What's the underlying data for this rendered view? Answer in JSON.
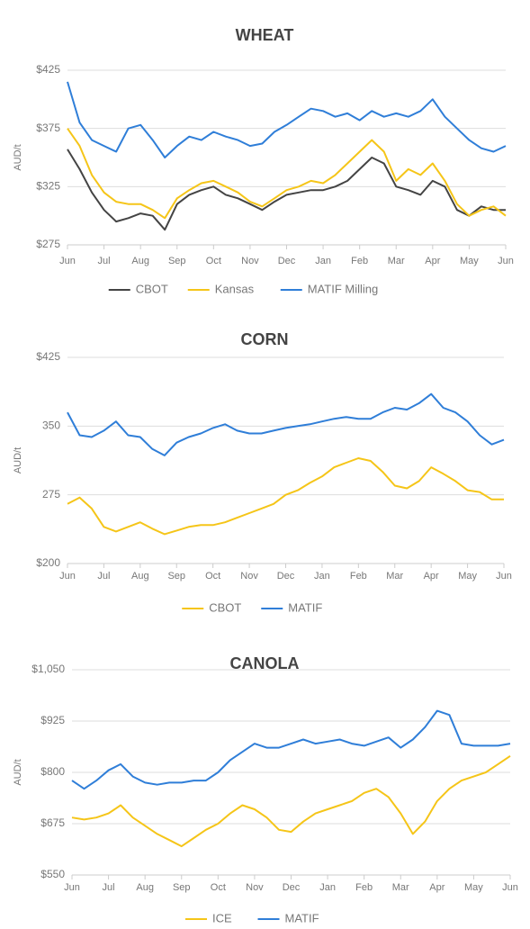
{
  "chart_data": [
    {
      "type": "line",
      "title": "WHEAT",
      "y_label": "AUD/t",
      "grid": true,
      "legend": "bottom",
      "categories": [
        "Jun",
        null,
        null,
        "Jul",
        null,
        null,
        "Aug",
        null,
        null,
        "Sep",
        null,
        null,
        "Oct",
        null,
        null,
        "Nov",
        null,
        null,
        "Dec",
        null,
        null,
        "Jan",
        null,
        null,
        "Feb",
        null,
        null,
        "Mar",
        null,
        null,
        "Apr",
        null,
        null,
        "May",
        null,
        null,
        "Jun"
      ],
      "ylim": [
        275,
        425
      ],
      "yticks": [
        {
          "value": 275,
          "label": "$275"
        },
        {
          "value": 325,
          "label": "$325"
        },
        {
          "value": 375,
          "label": "$375"
        },
        {
          "value": 425,
          "label": "$425"
        }
      ],
      "series": [
        {
          "name": "CBOT",
          "color": "#444444",
          "values": [
            357,
            340,
            320,
            305,
            295,
            298,
            302,
            300,
            288,
            310,
            318,
            322,
            325,
            318,
            315,
            310,
            305,
            312,
            318,
            320,
            322,
            322,
            325,
            330,
            340,
            350,
            345,
            325,
            322,
            318,
            330,
            325,
            305,
            300,
            308,
            305,
            305
          ]
        },
        {
          "name": "Kansas",
          "color": "#f5c518",
          "values": [
            375,
            360,
            335,
            320,
            312,
            310,
            310,
            305,
            298,
            315,
            322,
            328,
            330,
            325,
            320,
            312,
            308,
            315,
            322,
            325,
            330,
            328,
            335,
            345,
            355,
            365,
            355,
            330,
            340,
            335,
            345,
            330,
            310,
            300,
            305,
            308,
            300
          ]
        },
        {
          "name": "MATIF Milling",
          "color": "#2f7ed8",
          "values": [
            415,
            380,
            365,
            360,
            355,
            375,
            378,
            365,
            350,
            360,
            368,
            365,
            372,
            368,
            365,
            360,
            362,
            372,
            378,
            385,
            392,
            390,
            385,
            388,
            382,
            390,
            385,
            388,
            385,
            390,
            400,
            385,
            375,
            365,
            358,
            355,
            360
          ]
        }
      ]
    },
    {
      "type": "line",
      "title": "CORN",
      "y_label": "AUD/t",
      "grid": true,
      "legend": "bottom",
      "categories": [
        "Jun",
        null,
        null,
        "Jul",
        null,
        null,
        "Aug",
        null,
        null,
        "Sep",
        null,
        null,
        "Oct",
        null,
        null,
        "Nov",
        null,
        null,
        "Dec",
        null,
        null,
        "Jan",
        null,
        null,
        "Feb",
        null,
        null,
        "Mar",
        null,
        null,
        "Apr",
        null,
        null,
        "May",
        null,
        null,
        "Jun"
      ],
      "ylim": [
        200,
        425
      ],
      "yticks": [
        {
          "value": 200,
          "label": "$200"
        },
        275,
        350,
        {
          "value": 425,
          "label": "$425"
        }
      ],
      "series": [
        {
          "name": "CBOT",
          "color": "#f5c518",
          "values": [
            265,
            272,
            260,
            240,
            235,
            240,
            245,
            238,
            232,
            236,
            240,
            242,
            242,
            245,
            250,
            255,
            260,
            265,
            275,
            280,
            288,
            295,
            305,
            310,
            315,
            312,
            300,
            285,
            282,
            290,
            305,
            298,
            290,
            280,
            278,
            270,
            270
          ]
        },
        {
          "name": "MATIF",
          "color": "#2f7ed8",
          "values": [
            365,
            340,
            338,
            345,
            355,
            340,
            338,
            325,
            318,
            332,
            338,
            342,
            348,
            352,
            345,
            342,
            342,
            345,
            348,
            350,
            352,
            355,
            358,
            360,
            358,
            358,
            365,
            370,
            368,
            375,
            385,
            370,
            365,
            355,
            340,
            330,
            335
          ]
        }
      ]
    },
    {
      "type": "line",
      "title": "CANOLA",
      "y_label": "AUD/t",
      "grid": true,
      "legend": "bottom",
      "categories": [
        "Jun",
        null,
        null,
        "Jul",
        null,
        null,
        "Aug",
        null,
        null,
        "Sep",
        null,
        null,
        "Oct",
        null,
        null,
        "Nov",
        null,
        null,
        "Dec",
        null,
        null,
        "Jan",
        null,
        null,
        "Feb",
        null,
        null,
        "Mar",
        null,
        null,
        "Apr",
        null,
        null,
        "May",
        null,
        null,
        "Jun"
      ],
      "ylim": [
        550,
        1050
      ],
      "yticks": [
        {
          "value": 550,
          "label": "$550"
        },
        {
          "value": 675,
          "label": "$675"
        },
        {
          "value": 800,
          "label": "$800"
        },
        {
          "value": 925,
          "label": "$925"
        },
        {
          "value": 1050,
          "label": "$1,050"
        }
      ],
      "series": [
        {
          "name": "ICE",
          "color": "#f5c518",
          "values": [
            690,
            685,
            690,
            700,
            720,
            690,
            670,
            650,
            635,
            620,
            640,
            660,
            675,
            700,
            720,
            710,
            690,
            660,
            655,
            680,
            700,
            710,
            720,
            730,
            750,
            760,
            740,
            700,
            650,
            680,
            730,
            760,
            780,
            790,
            800,
            820,
            840
          ]
        },
        {
          "name": "MATIF",
          "color": "#2f7ed8",
          "values": [
            780,
            760,
            780,
            805,
            820,
            790,
            775,
            770,
            775,
            775,
            780,
            780,
            800,
            830,
            850,
            870,
            860,
            860,
            870,
            880,
            870,
            875,
            880,
            870,
            865,
            875,
            885,
            860,
            880,
            910,
            950,
            940,
            870,
            865,
            865,
            865,
            870
          ]
        }
      ]
    }
  ]
}
